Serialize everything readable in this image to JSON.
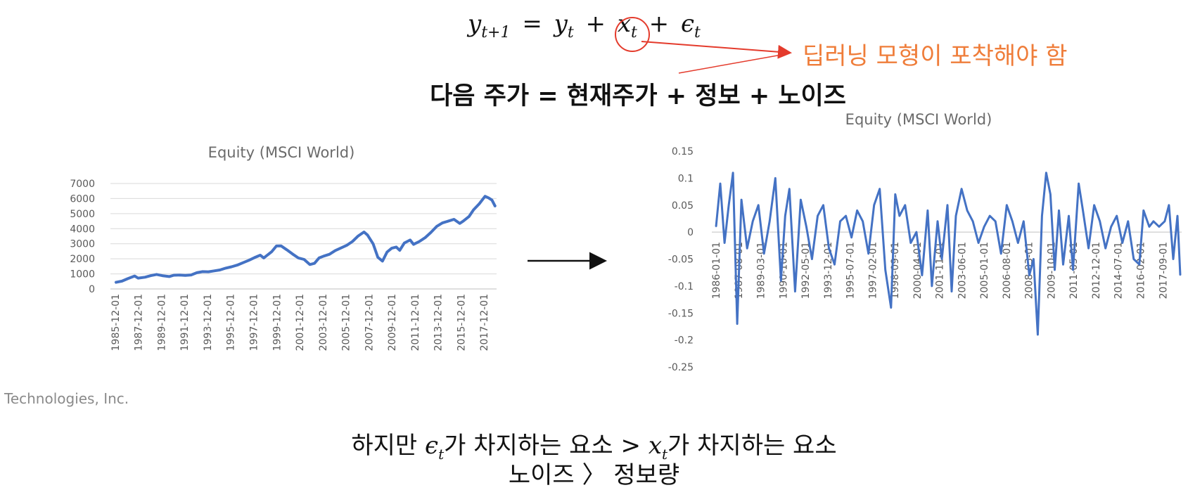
{
  "equation": {
    "lhs": "y",
    "lhs_sub": "t+1",
    "eq": "=",
    "y": "y",
    "y_sub": "t",
    "plus1": "+",
    "x": "x",
    "x_sub": "t",
    "plus2": "+",
    "eps": "ϵ",
    "eps_sub": "t"
  },
  "annotation": "딥러닝 모형이 포착해야 함",
  "equation_words": "다음 주가 = 현재주가 + 정보 + 노이즈",
  "watermark": "Technologies, Inc.",
  "bottom": {
    "line1_a": "하지만 ",
    "eps": "ϵ",
    "eps_sub": "t",
    "line1_b": "가 차지하는 요소 > ",
    "x": "x",
    "x_sub": "t",
    "line1_c": "가 차지하는 요소",
    "line2": "노이즈 〉 정보량"
  },
  "colors": {
    "series": "#4472c4",
    "circle": "#e43b2c",
    "annotation": "#ef7d3a"
  },
  "chart_data": [
    {
      "type": "line",
      "title": "Equity (MSCI World)",
      "ylim": [
        0,
        7000
      ],
      "yticks": [
        "0",
        "1000",
        "2000",
        "3000",
        "4000",
        "5000",
        "6000",
        "7000"
      ],
      "xticks": [
        "1985-12-01",
        "1987-12-01",
        "1989-12-01",
        "1991-12-01",
        "1993-12-01",
        "1995-12-01",
        "1997-12-01",
        "1999-12-01",
        "2001-12-01",
        "2003-12-01",
        "2005-12-01",
        "2007-12-01",
        "2009-12-01",
        "2011-12-01",
        "2013-12-01",
        "2015-12-01",
        "2017-12-01"
      ],
      "grid": true,
      "x": [
        1985.9,
        1986.5,
        1987.0,
        1987.6,
        1987.9,
        1988.5,
        1989.0,
        1989.5,
        1990.0,
        1990.6,
        1991.0,
        1991.5,
        1992.0,
        1992.5,
        1993.0,
        1993.5,
        1994.0,
        1994.5,
        1995.0,
        1995.5,
        1996.0,
        1996.5,
        1997.0,
        1997.5,
        1998.0,
        1998.5,
        1998.8,
        1999.5,
        1999.9,
        2000.3,
        2000.8,
        2001.3,
        2001.8,
        2002.3,
        2002.8,
        2003.2,
        2003.6,
        2004.0,
        2004.5,
        2005.0,
        2005.5,
        2006.0,
        2006.5,
        2007.0,
        2007.5,
        2007.8,
        2008.3,
        2008.7,
        2009.1,
        2009.5,
        2009.9,
        2010.3,
        2010.6,
        2011.0,
        2011.5,
        2011.8,
        2012.3,
        2012.8,
        2013.3,
        2013.8,
        2014.3,
        2014.8,
        2015.3,
        2015.8,
        2016.1,
        2016.6,
        2017.0,
        2017.5,
        2018.0,
        2018.3,
        2018.6,
        2018.9
      ],
      "values": [
        430,
        520,
        680,
        860,
        720,
        780,
        880,
        960,
        880,
        820,
        910,
        920,
        900,
        930,
        1080,
        1150,
        1140,
        1200,
        1260,
        1380,
        1470,
        1580,
        1740,
        1900,
        2080,
        2240,
        2060,
        2480,
        2850,
        2860,
        2600,
        2320,
        2060,
        1960,
        1620,
        1700,
        2060,
        2180,
        2300,
        2550,
        2720,
        2900,
        3150,
        3520,
        3780,
        3580,
        2980,
        2100,
        1850,
        2450,
        2700,
        2780,
        2560,
        3050,
        3250,
        2960,
        3150,
        3400,
        3750,
        4150,
        4380,
        4500,
        4620,
        4350,
        4500,
        4800,
        5250,
        5650,
        6150,
        6050,
        5900,
        5450
      ]
    },
    {
      "type": "line",
      "title": "Equity (MSCI World)",
      "ylim": [
        -0.25,
        0.15
      ],
      "yticks": [
        "0.15",
        "0.1",
        "0.05",
        "0",
        "-0.05",
        "-0.1",
        "-0.15",
        "-0.2",
        "-0.25"
      ],
      "xticks": [
        "1986-01-01",
        "1987-08-01",
        "1989-03-01",
        "1990-10-01",
        "1992-05-01",
        "1993-12-01",
        "1995-07-01",
        "1997-02-01",
        "1998-09-01",
        "2000-04-01",
        "2001-11-01",
        "2003-06-01",
        "2005-01-01",
        "2006-08-01",
        "2008-03-01",
        "2009-10-01",
        "2011-05-01",
        "2012-12-01",
        "2014-07-01",
        "2016-02-01",
        "2017-09-01"
      ],
      "grid": false,
      "x": [
        1986.0,
        1986.3,
        1986.6,
        1986.9,
        1987.2,
        1987.5,
        1987.8,
        1988.2,
        1988.6,
        1989.0,
        1989.4,
        1989.8,
        1990.2,
        1990.6,
        1990.9,
        1991.2,
        1991.6,
        1992.0,
        1992.4,
        1992.8,
        1993.2,
        1993.6,
        1994.0,
        1994.4,
        1994.8,
        1995.2,
        1995.6,
        1996.0,
        1996.4,
        1996.8,
        1997.2,
        1997.6,
        1998.0,
        1998.4,
        1998.7,
        1999.0,
        1999.4,
        1999.8,
        2000.2,
        2000.6,
        2001.0,
        2001.3,
        2001.7,
        2002.0,
        2002.4,
        2002.7,
        2003.0,
        2003.4,
        2003.8,
        2004.2,
        2004.6,
        2005.0,
        2005.4,
        2005.8,
        2006.2,
        2006.6,
        2007.0,
        2007.4,
        2007.8,
        2008.2,
        2008.5,
        2008.8,
        2009.1,
        2009.4,
        2009.7,
        2010.0,
        2010.3,
        2010.6,
        2011.0,
        2011.3,
        2011.7,
        2012.0,
        2012.4,
        2012.8,
        2013.2,
        2013.6,
        2014.0,
        2014.4,
        2014.8,
        2015.2,
        2015.6,
        2016.0,
        2016.3,
        2016.7,
        2017.0,
        2017.4,
        2017.8,
        2018.1,
        2018.4,
        2018.7,
        2018.9
      ],
      "values": [
        0.01,
        0.09,
        -0.02,
        0.05,
        0.11,
        -0.17,
        0.06,
        -0.03,
        0.02,
        0.05,
        -0.04,
        0.02,
        0.1,
        -0.09,
        0.03,
        0.08,
        -0.11,
        0.06,
        0.01,
        -0.05,
        0.03,
        0.05,
        -0.03,
        -0.06,
        0.02,
        0.03,
        -0.01,
        0.04,
        0.02,
        -0.04,
        0.05,
        0.08,
        -0.07,
        -0.14,
        0.07,
        0.03,
        0.05,
        -0.02,
        0.0,
        -0.08,
        0.04,
        -0.1,
        0.02,
        -0.05,
        0.05,
        -0.11,
        0.03,
        0.08,
        0.04,
        0.02,
        -0.02,
        0.01,
        0.03,
        0.02,
        -0.04,
        0.05,
        0.02,
        -0.02,
        0.02,
        -0.08,
        -0.05,
        -0.19,
        0.03,
        0.11,
        0.07,
        -0.07,
        0.04,
        -0.06,
        0.03,
        -0.07,
        0.09,
        0.04,
        -0.03,
        0.05,
        0.02,
        -0.03,
        0.01,
        0.03,
        -0.02,
        0.02,
        -0.05,
        -0.06,
        0.04,
        0.01,
        0.02,
        0.01,
        0.02,
        0.05,
        -0.05,
        0.03,
        -0.08
      ]
    }
  ]
}
